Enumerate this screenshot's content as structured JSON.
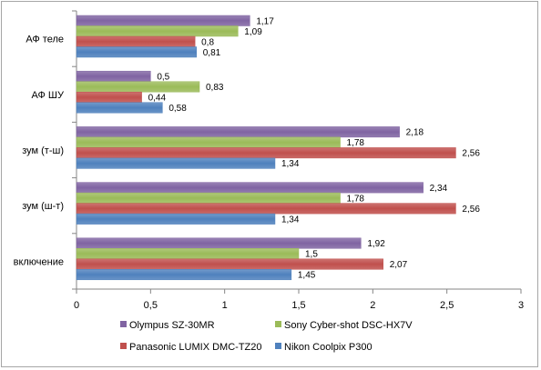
{
  "chart_data": {
    "type": "bar",
    "orientation": "horizontal",
    "categories": [
      "АФ теле",
      "АФ ШУ",
      "зум (т-ш)",
      "зум (ш-т)",
      "включение"
    ],
    "series": [
      {
        "name": "Olympus SZ-30MR",
        "color": "#8064a2",
        "values": [
          1.17,
          0.5,
          2.18,
          2.34,
          1.92
        ],
        "labels": [
          "1,17",
          "0,5",
          "2,18",
          "2,34",
          "1,92"
        ]
      },
      {
        "name": "Sony Cyber-shot DSC-HX7V",
        "color": "#9bbb59",
        "values": [
          1.09,
          0.83,
          1.78,
          1.78,
          1.5
        ],
        "labels": [
          "1,09",
          "0,83",
          "1,78",
          "1,78",
          "1,5"
        ]
      },
      {
        "name": "Panasonic LUMIX DMC-TZ20",
        "color": "#c0504d",
        "values": [
          0.8,
          0.44,
          2.56,
          2.56,
          2.07
        ],
        "labels": [
          "0,8",
          "0,44",
          "2,56",
          "2,56",
          "2,07"
        ]
      },
      {
        "name": "Nikon Coolpix P300",
        "color": "#4f81bd",
        "values": [
          0.81,
          0.58,
          1.34,
          1.34,
          1.45
        ],
        "labels": [
          "0,81",
          "0,58",
          "1,34",
          "1,34",
          "1,45"
        ]
      }
    ],
    "xlim": [
      0,
      3
    ],
    "xticks": [
      0,
      0.5,
      1,
      1.5,
      2,
      2.5,
      3
    ],
    "xtick_labels": [
      "0",
      "0,5",
      "1",
      "1,5",
      "2",
      "2,5",
      "3"
    ],
    "grid": false,
    "legend_position": "bottom",
    "legend_rows": [
      [
        "Olympus SZ-30MR",
        "Sony Cyber-shot DSC-HX7V"
      ],
      [
        "Panasonic LUMIX DMC-TZ20",
        "Nikon Coolpix P300"
      ]
    ]
  }
}
